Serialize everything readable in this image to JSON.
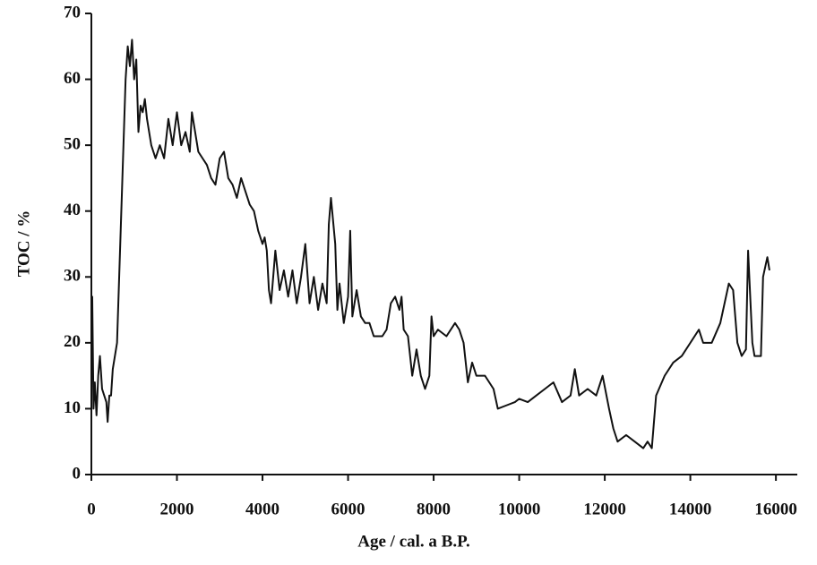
{
  "chart_data": {
    "type": "line",
    "x_label": "Age / cal. a B.P.",
    "y_label": "TOC / %",
    "xlim": [
      0,
      16500
    ],
    "ylim": [
      0,
      70
    ],
    "xticks": [
      0,
      2000,
      4000,
      6000,
      8000,
      10000,
      12000,
      14000,
      16000
    ],
    "yticks": [
      0,
      10,
      20,
      30,
      40,
      50,
      60,
      70
    ],
    "series": [
      {
        "color": "#111111",
        "x": [
          0,
          20,
          50,
          80,
          120,
          160,
          200,
          250,
          300,
          350,
          380,
          420,
          460,
          500,
          550,
          600,
          650,
          700,
          750,
          800,
          850,
          900,
          950,
          1000,
          1050,
          1100,
          1150,
          1200,
          1250,
          1300,
          1400,
          1500,
          1600,
          1700,
          1800,
          1900,
          2000,
          2100,
          2200,
          2300,
          2350,
          2400,
          2500,
          2600,
          2700,
          2800,
          2900,
          3000,
          3100,
          3200,
          3300,
          3400,
          3500,
          3600,
          3700,
          3800,
          3900,
          4000,
          4050,
          4100,
          4150,
          4200,
          4300,
          4400,
          4500,
          4600,
          4700,
          4800,
          4900,
          5000,
          5100,
          5200,
          5300,
          5400,
          5500,
          5550,
          5600,
          5700,
          5750,
          5800,
          5900,
          6000,
          6050,
          6100,
          6200,
          6300,
          6400,
          6500,
          6600,
          6800,
          6900,
          7000,
          7100,
          7200,
          7250,
          7300,
          7400,
          7500,
          7600,
          7700,
          7800,
          7900,
          7950,
          8000,
          8100,
          8300,
          8500,
          8600,
          8700,
          8800,
          8900,
          9000,
          9200,
          9400,
          9500,
          9700,
          9900,
          10000,
          10200,
          10400,
          10600,
          10800,
          11000,
          11200,
          11300,
          11400,
          11600,
          11800,
          11950,
          12100,
          12200,
          12300,
          12500,
          12700,
          12900,
          13000,
          13100,
          13200,
          13400,
          13600,
          13800,
          14000,
          14200,
          14300,
          14500,
          14700,
          14900,
          15000,
          15100,
          15200,
          15300,
          15350,
          15450,
          15500,
          15650,
          15700,
          15800,
          15850
        ],
        "values": [
          20,
          27,
          10,
          14,
          9,
          15,
          18,
          13,
          12,
          11,
          8,
          12,
          12,
          16,
          18,
          20,
          30,
          40,
          50,
          60,
          65,
          62,
          66,
          60,
          63,
          52,
          56,
          55,
          57,
          54,
          50,
          48,
          50,
          48,
          54,
          50,
          55,
          50,
          52,
          49,
          55,
          53,
          49,
          48,
          47,
          45,
          44,
          48,
          49,
          45,
          44,
          42,
          45,
          43,
          41,
          40,
          37,
          35,
          36,
          34,
          28,
          26,
          34,
          28,
          31,
          27,
          31,
          26,
          30,
          35,
          26,
          30,
          25,
          29,
          26,
          38,
          42,
          35,
          25,
          29,
          23,
          27,
          37,
          24,
          28,
          24,
          23,
          23,
          21,
          21,
          22,
          26,
          27,
          25,
          27,
          22,
          21,
          15,
          19,
          15,
          13,
          15,
          24,
          21,
          22,
          21,
          23,
          22,
          20,
          14,
          17,
          15,
          15,
          13,
          10,
          10.5,
          11,
          11.5,
          11,
          12,
          13,
          14,
          11,
          12,
          16,
          12,
          13,
          12,
          15,
          10,
          7,
          5,
          6,
          5,
          4,
          5,
          4,
          12,
          15,
          17,
          18,
          20,
          22,
          20,
          20,
          23,
          29,
          28,
          20,
          18,
          19,
          34,
          20,
          18,
          18,
          30,
          33,
          31
        ]
      }
    ]
  }
}
